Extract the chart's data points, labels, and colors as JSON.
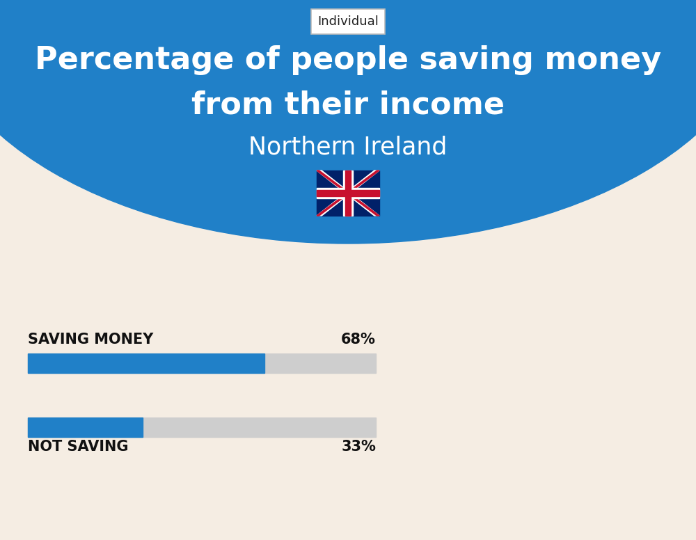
{
  "title_line1": "Percentage of people saving money",
  "title_line2": "from their income",
  "subtitle": "Northern Ireland",
  "tab_label": "Individual",
  "bg_top_color": "#2080C8",
  "bg_bottom_color": "#F5EDE3",
  "bar1_label": "SAVING MONEY",
  "bar1_value": 68,
  "bar1_color": "#2080C8",
  "bar2_label": "NOT SAVING",
  "bar2_value": 33,
  "bar2_color": "#2080C8",
  "bar_bg_color": "#CECECE",
  "bar_max": 100,
  "label_color": "#111111",
  "title_color": "#FFFFFF",
  "subtitle_color": "#FFFFFF",
  "tab_bg": "#FFFFFF",
  "tab_border": "#CCCCCC",
  "fig_width": 10.0,
  "fig_height": 7.76
}
